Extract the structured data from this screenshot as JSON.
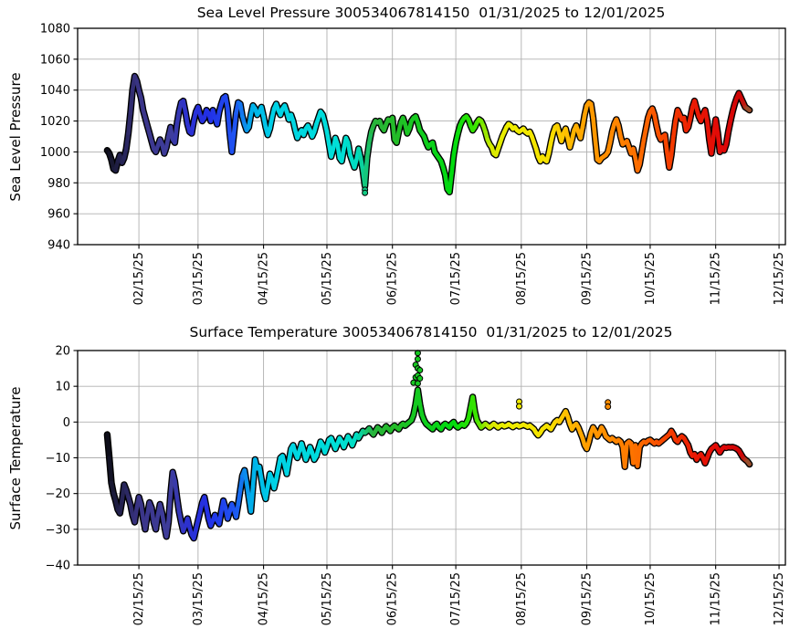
{
  "figure": {
    "background": "#ffffff",
    "platform_id_shown_in_titles": "300534067814150"
  },
  "colors": {
    "grid": "#b0b0b0",
    "spine": "#000000",
    "marker_edge": "#000000",
    "background": "#ffffff"
  },
  "colormap": {
    "description": "point color by observation time, start 01/31/2025 to end 12/01/2025",
    "stops": [
      [
        0.0,
        "#0c0c14"
      ],
      [
        0.01,
        "#1a1a38"
      ],
      [
        0.05,
        "#3a3487"
      ],
      [
        0.1,
        "#3e3d9c"
      ],
      [
        0.125,
        "#2c31cf"
      ],
      [
        0.16,
        "#2230e6"
      ],
      [
        0.2,
        "#1f55f2"
      ],
      [
        0.225,
        "#00aeea"
      ],
      [
        0.26,
        "#00d2e6"
      ],
      [
        0.36,
        "#00dfd8"
      ],
      [
        0.39,
        "#00dcc0"
      ],
      [
        0.415,
        "#28b43c"
      ],
      [
        0.45,
        "#24bc28"
      ],
      [
        0.5,
        "#0ed01c"
      ],
      [
        0.54,
        "#00dc0e"
      ],
      [
        0.575,
        "#3ce400"
      ],
      [
        0.6,
        "#d8ea00"
      ],
      [
        0.625,
        "#eeee00"
      ],
      [
        0.69,
        "#f6e000"
      ],
      [
        0.715,
        "#ffc000"
      ],
      [
        0.75,
        "#ff9c00"
      ],
      [
        0.8,
        "#ff8200"
      ],
      [
        0.845,
        "#fb5f00"
      ],
      [
        0.88,
        "#f43a00"
      ],
      [
        0.915,
        "#ea1a04"
      ],
      [
        0.96,
        "#e00808"
      ],
      [
        0.99,
        "#cc0606"
      ],
      [
        1.0,
        "#8e5c34"
      ]
    ]
  },
  "chart_data": [
    {
      "type": "scatter",
      "title": "Sea Level Pressure 300534067814150  01/31/2025 to 12/01/2025",
      "ylabel": "Sea Level Pressure",
      "xlabel": "",
      "grid": true,
      "legend": "none",
      "ylim": [
        940,
        1080
      ],
      "ytick_values": [
        940,
        960,
        980,
        1000,
        1020,
        1040,
        1060,
        1080
      ],
      "ytick_labels": [
        "940",
        "960",
        "980",
        "1000",
        "1020",
        "1040",
        "1060",
        "1080"
      ],
      "xtick_labels": [
        "02/15/25",
        "03/15/25",
        "04/15/25",
        "05/15/25",
        "06/15/25",
        "07/15/25",
        "08/15/25",
        "09/15/25",
        "10/15/25",
        "11/15/25",
        "12/15/25"
      ],
      "x_axis_span": [
        "01/17/25",
        "12/18/25"
      ],
      "color_time_span": [
        "01/31/25",
        "12/01/25"
      ],
      "series_start": "01/31/25",
      "series_cadence": "daily",
      "values": [
        1001,
        999,
        995,
        989,
        988,
        994,
        998,
        993,
        996,
        1002,
        1012,
        1025,
        1040,
        1049,
        1046,
        1040,
        1035,
        1027,
        1022,
        1017,
        1012,
        1007,
        1002,
        1000,
        1004,
        1008,
        1005,
        999,
        1003,
        1010,
        1016,
        1008,
        1006,
        1018,
        1026,
        1032,
        1033,
        1026,
        1018,
        1013,
        1012,
        1020,
        1026,
        1029,
        1024,
        1020,
        1022,
        1027,
        1025,
        1020,
        1027,
        1022,
        1018,
        1026,
        1031,
        1035,
        1036,
        1028,
        1012,
        1000,
        1012,
        1025,
        1032,
        1031,
        1023,
        1018,
        1014,
        1016,
        1024,
        1030,
        1028,
        1024,
        1026,
        1029,
        1023,
        1016,
        1011,
        1015,
        1022,
        1028,
        1031,
        1027,
        1024,
        1028,
        1030,
        1026,
        1021,
        1024,
        1020,
        1014,
        1009,
        1012,
        1014,
        1011,
        1015,
        1017,
        1014,
        1010,
        1013,
        1018,
        1022,
        1026,
        1024,
        1019,
        1013,
        1005,
        997,
        1002,
        1009,
        1005,
        996,
        994,
        1002,
        1009,
        1006,
        998,
        994,
        990,
        995,
        1002,
        996,
        988,
        978,
        996,
        1006,
        1013,
        1017,
        1020,
        1019,
        1020,
        1016,
        1014,
        1018,
        1021,
        1020,
        1022,
        1008,
        1006,
        1013,
        1019,
        1022,
        1018,
        1012,
        1015,
        1020,
        1022,
        1023,
        1019,
        1014,
        1012,
        1010,
        1006,
        1003,
        1005,
        1006,
        1000,
        998,
        996,
        994,
        990,
        985,
        976,
        974,
        986,
        998,
        1006,
        1012,
        1017,
        1020,
        1022,
        1023,
        1021,
        1017,
        1014,
        1016,
        1019,
        1021,
        1020,
        1017,
        1013,
        1008,
        1005,
        1003,
        999,
        998,
        1002,
        1006,
        1010,
        1013,
        1016,
        1018,
        1017,
        1015,
        1016,
        1014,
        1013,
        1014,
        1015,
        1013,
        1012,
        1013,
        1010,
        1006,
        1002,
        997,
        994,
        997,
        995,
        994,
        999,
        1006,
        1012,
        1016,
        1017,
        1012,
        1007,
        1012,
        1015,
        1009,
        1003,
        1008,
        1014,
        1017,
        1013,
        1009,
        1016,
        1024,
        1030,
        1032,
        1031,
        1022,
        1008,
        995,
        994,
        996,
        997,
        998,
        1000,
        1006,
        1013,
        1018,
        1021,
        1017,
        1010,
        1005,
        1006,
        1007,
        1003,
        999,
        1002,
        996,
        988,
        992,
        1000,
        1008,
        1015,
        1022,
        1026,
        1028,
        1024,
        1017,
        1011,
        1008,
        1010,
        1011,
        1000,
        990,
        998,
        1010,
        1020,
        1027,
        1024,
        1021,
        1022,
        1014,
        1016,
        1022,
        1029,
        1033,
        1028,
        1023,
        1020,
        1024,
        1027,
        1020,
        1008,
        999,
        1010,
        1021,
        1012,
        1000,
        1003,
        1001,
        1005,
        1013,
        1020,
        1026,
        1031,
        1035,
        1038,
        1035,
        1032,
        1029,
        1028,
        1027
      ],
      "outliers": [
        [
          "06/02/25",
          975.5
        ],
        [
          "06/02/25",
          973.5
        ]
      ]
    },
    {
      "type": "scatter",
      "title": "Surface Temperature 300534067814150  01/31/2025 to 12/01/2025",
      "ylabel": "Surface Temperature",
      "xlabel": "",
      "grid": true,
      "legend": "none",
      "ylim": [
        -40,
        20
      ],
      "ytick_values": [
        -40,
        -30,
        -20,
        -10,
        0,
        10,
        20
      ],
      "ytick_labels": [
        "−40",
        "−30",
        "−20",
        "−10",
        "0",
        "10",
        "20"
      ],
      "xtick_labels": [
        "02/15/25",
        "03/15/25",
        "04/15/25",
        "05/15/25",
        "06/15/25",
        "07/15/25",
        "08/15/25",
        "09/15/25",
        "10/15/25",
        "11/15/25",
        "12/15/25"
      ],
      "x_axis_span": [
        "01/17/25",
        "12/18/25"
      ],
      "color_time_span": [
        "01/31/25",
        "12/01/25"
      ],
      "series_start": "01/31/25",
      "series_cadence": "daily",
      "values": [
        -3.5,
        -10,
        -17,
        -20,
        -22,
        -24.5,
        -25.5,
        -22,
        -17.5,
        -19,
        -21,
        -23,
        -26,
        -28,
        -24,
        -21,
        -23,
        -27,
        -30,
        -26,
        -22.5,
        -24,
        -28,
        -30,
        -26,
        -23,
        -25.5,
        -29,
        -32,
        -28,
        -20,
        -14,
        -16.5,
        -21,
        -25,
        -28,
        -30.5,
        -29,
        -27,
        -29.5,
        -31.5,
        -32.5,
        -30,
        -27.5,
        -25,
        -22.5,
        -21,
        -24,
        -27,
        -29,
        -27.5,
        -26,
        -27.5,
        -28.5,
        -25,
        -22,
        -24,
        -27,
        -25,
        -23,
        -24.5,
        -26.5,
        -23,
        -19,
        -15,
        -13.5,
        -17,
        -21,
        -25,
        -18,
        -10.5,
        -13,
        -12.5,
        -16,
        -19.5,
        -21.5,
        -18,
        -14.5,
        -16,
        -18.5,
        -16,
        -13,
        -10,
        -9.5,
        -12,
        -14.5,
        -11,
        -7.5,
        -6.5,
        -8.5,
        -10,
        -8,
        -6,
        -8,
        -10.5,
        -9,
        -7,
        -8.5,
        -10.5,
        -9.5,
        -7.5,
        -5.5,
        -6.5,
        -8.5,
        -7,
        -5,
        -4.5,
        -6,
        -7.5,
        -6,
        -4.5,
        -5.5,
        -7,
        -5.5,
        -4,
        -5,
        -6.5,
        -5,
        -3.5,
        -4.5,
        -3.5,
        -2.5,
        -3,
        -2.5,
        -1.8,
        -2.8,
        -3.5,
        -2.5,
        -1.5,
        -2,
        -3,
        -2,
        -1.2,
        -1.8,
        -2.5,
        -1.5,
        -1,
        -1.5,
        -2,
        -1,
        -0.5,
        -1,
        -0.5,
        0,
        0.5,
        2,
        5,
        9,
        5,
        2,
        0.5,
        -0.5,
        -1,
        -1.5,
        -2,
        -1,
        -0.5,
        -1.5,
        -2,
        -1,
        -0.5,
        -1,
        -1.5,
        -0.5,
        0,
        -1,
        -1.5,
        -1,
        -0.5,
        -1,
        -0.3,
        1,
        4,
        7,
        3,
        0.5,
        -0.5,
        -1.5,
        -1,
        -0.5,
        -1,
        -1.5,
        -1,
        -0.5,
        -1,
        -1.5,
        -1,
        -0.8,
        -1.2,
        -1,
        -0.6,
        -1,
        -1.4,
        -1,
        -0.8,
        -1.2,
        -1,
        -0.7,
        -1,
        -1.3,
        -1,
        -1.5,
        -2,
        -3,
        -3.7,
        -3,
        -2,
        -1.5,
        -1,
        -1.5,
        -2,
        -1,
        0,
        0.5,
        0,
        1,
        2,
        3,
        1.5,
        -0.5,
        -2,
        -1,
        -0.5,
        -1.5,
        -3,
        -4.5,
        -6.5,
        -7.5,
        -5.5,
        -3,
        -1.5,
        -2.5,
        -4,
        -3,
        -1.5,
        -2.5,
        -4,
        -4.5,
        -5,
        -4.5,
        -5,
        -5.5,
        -5,
        -5.5,
        -7,
        -12.5,
        -6,
        -5.5,
        -6,
        -11.5,
        -6.5,
        -12.3,
        -7,
        -6,
        -5.5,
        -5.8,
        -5.2,
        -5,
        -5.5,
        -6,
        -5.5,
        -6,
        -5.5,
        -5,
        -4.5,
        -4,
        -3.5,
        -2.5,
        -3.5,
        -5,
        -5.5,
        -4.5,
        -4,
        -4.5,
        -5.5,
        -6.5,
        -8.5,
        -9.5,
        -9,
        -10.5,
        -9.5,
        -9,
        -10,
        -11.5,
        -10,
        -8.5,
        -7.5,
        -7,
        -6.5,
        -7.5,
        -8.5,
        -7.5,
        -7,
        -7.2,
        -7,
        -7.1,
        -7,
        -7.2,
        -7.5,
        -8,
        -9,
        -10,
        -10.5,
        -11,
        -11.8
      ],
      "outliers": [
        [
          "06/25/25",
          11
        ],
        [
          "06/26/25",
          16
        ],
        [
          "06/26/25",
          12.5
        ],
        [
          "06/27/25",
          19.3
        ],
        [
          "06/27/25",
          17.6
        ],
        [
          "06/27/25",
          15
        ],
        [
          "06/27/25",
          13
        ],
        [
          "06/27/25",
          10.8
        ],
        [
          "06/28/25",
          14.5
        ],
        [
          "06/28/25",
          12.2
        ],
        [
          "08/14/25",
          5.7
        ],
        [
          "08/14/25",
          4.4
        ],
        [
          "09/25/25",
          5.5
        ],
        [
          "09/25/25",
          4.3
        ]
      ]
    }
  ]
}
